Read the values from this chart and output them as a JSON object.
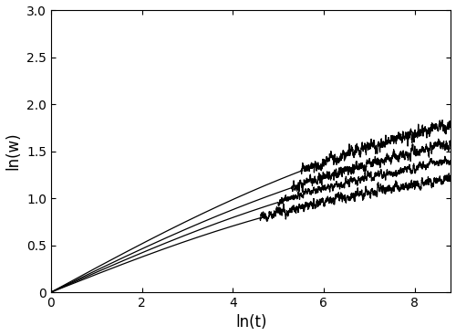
{
  "title": "",
  "xlabel": "ln(t)",
  "ylabel": "ln(w)",
  "xlim": [
    0,
    8.8
  ],
  "ylim": [
    0,
    3.0
  ],
  "xticks": [
    0,
    2,
    4,
    6,
    8
  ],
  "yticks": [
    0,
    0.5,
    1.0,
    1.5,
    2.0,
    2.5,
    3.0
  ],
  "line_color": "#000000",
  "background_color": "#ffffff",
  "curves": [
    {
      "saturation": 2.4,
      "crossover": 5.5,
      "beta": 0.5,
      "noise_amp": 0.04,
      "noise_seed": 1
    },
    {
      "saturation": 2.07,
      "crossover": 5.3,
      "beta": 0.5,
      "noise_amp": 0.035,
      "noise_seed": 2
    },
    {
      "saturation": 1.78,
      "crossover": 5.0,
      "beta": 0.5,
      "noise_amp": 0.025,
      "noise_seed": 3
    },
    {
      "saturation": 1.47,
      "crossover": 4.6,
      "beta": 0.5,
      "noise_amp": 0.03,
      "noise_seed": 4
    }
  ],
  "figsize": [
    5.0,
    3.68
  ],
  "dpi": 100,
  "linewidth": 0.9
}
